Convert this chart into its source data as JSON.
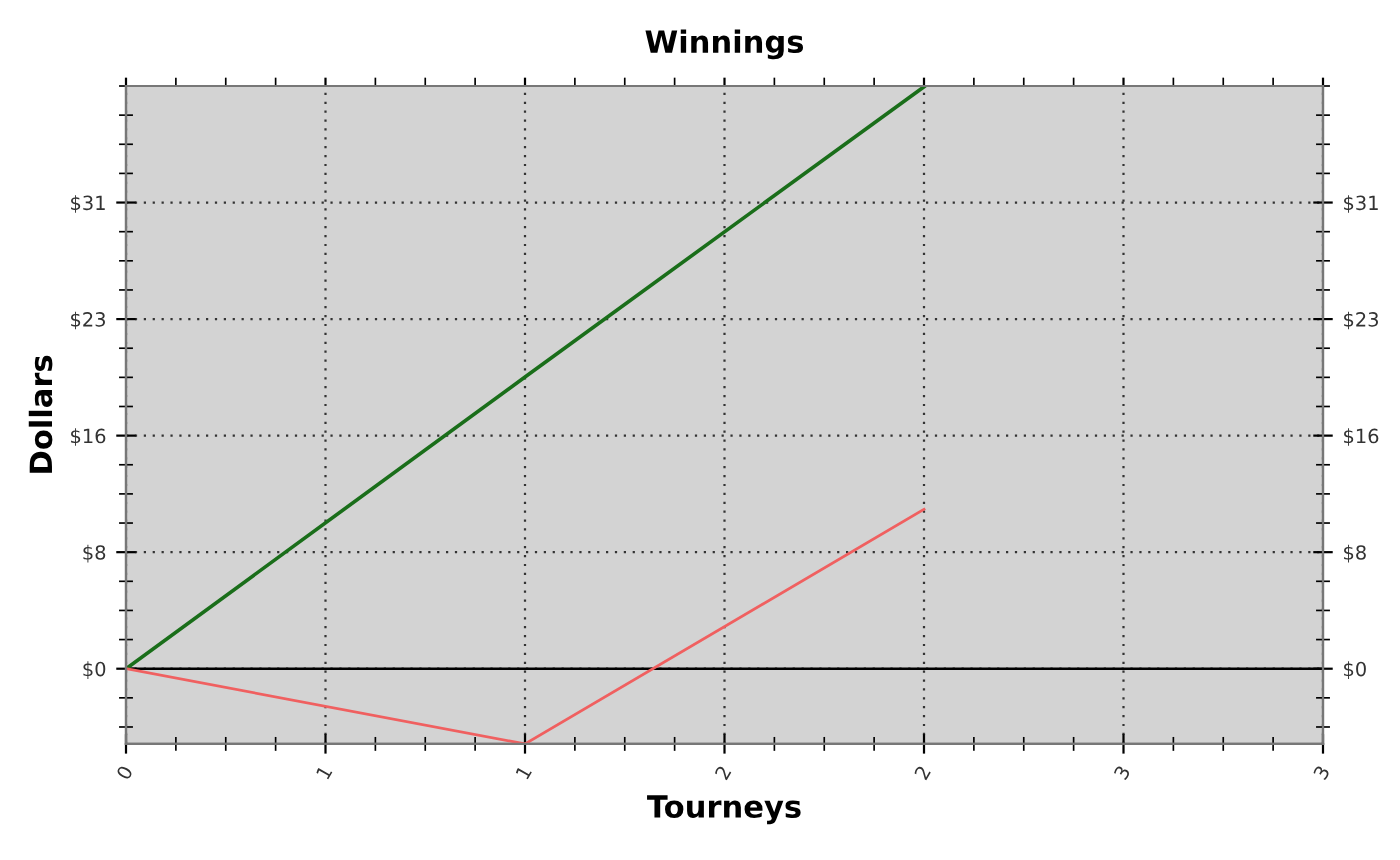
{
  "chart_data": {
    "type": "line",
    "title": "Winnings",
    "xlabel": "Tourneys",
    "ylabel": "Dollars",
    "x": [
      0,
      1,
      2
    ],
    "series": [
      {
        "color": "#1a6e1a",
        "values": [
          0,
          19.4,
          38.7
        ]
      },
      {
        "color": "#f06060",
        "values": [
          0,
          -5,
          10.6
        ]
      }
    ],
    "xlim": [
      0,
      3
    ],
    "xticks": [
      {
        "value": 0,
        "label": "0"
      },
      {
        "value": 0.5,
        "label": "1"
      },
      {
        "value": 1,
        "label": "1"
      },
      {
        "value": 1.5,
        "label": "2"
      },
      {
        "value": 2,
        "label": "2"
      },
      {
        "value": 2.5,
        "label": "3"
      },
      {
        "value": 3,
        "label": "3"
      }
    ],
    "ylim": [
      -5,
      38.75
    ],
    "yticks": [
      {
        "value": 0,
        "label": "$0"
      },
      {
        "value": 7.75,
        "label": "$8"
      },
      {
        "value": 15.5,
        "label": "$16"
      },
      {
        "value": 23.25,
        "label": "$23"
      },
      {
        "value": 31,
        "label": "$31"
      }
    ],
    "y2lim": [
      -5,
      38.75
    ],
    "y2ticks": [
      {
        "value": 0,
        "label": "$0"
      },
      {
        "value": 7.75,
        "label": "$8"
      },
      {
        "value": 15.5,
        "label": "$16"
      },
      {
        "value": 23.25,
        "label": "$23"
      },
      {
        "value": 31,
        "label": "$31"
      }
    ],
    "ref_lines": [
      {
        "axis": "y",
        "value": 0,
        "color": "#000000"
      }
    ],
    "grid": true,
    "marker": "none",
    "line_style": "solid"
  }
}
